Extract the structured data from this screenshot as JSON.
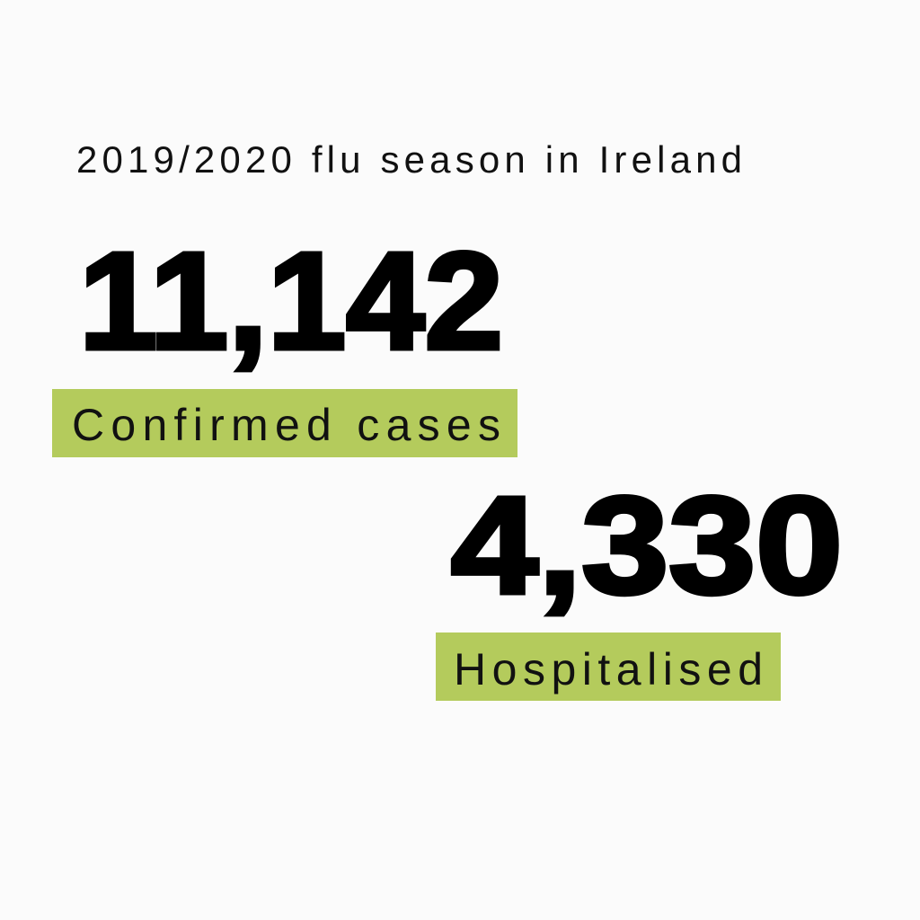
{
  "header": {
    "title": "2019/2020 flu season in Ireland"
  },
  "stats": [
    {
      "value": "11,142",
      "label": "Confirmed cases"
    },
    {
      "value": "4,330",
      "label": "Hospitalised"
    }
  ]
}
